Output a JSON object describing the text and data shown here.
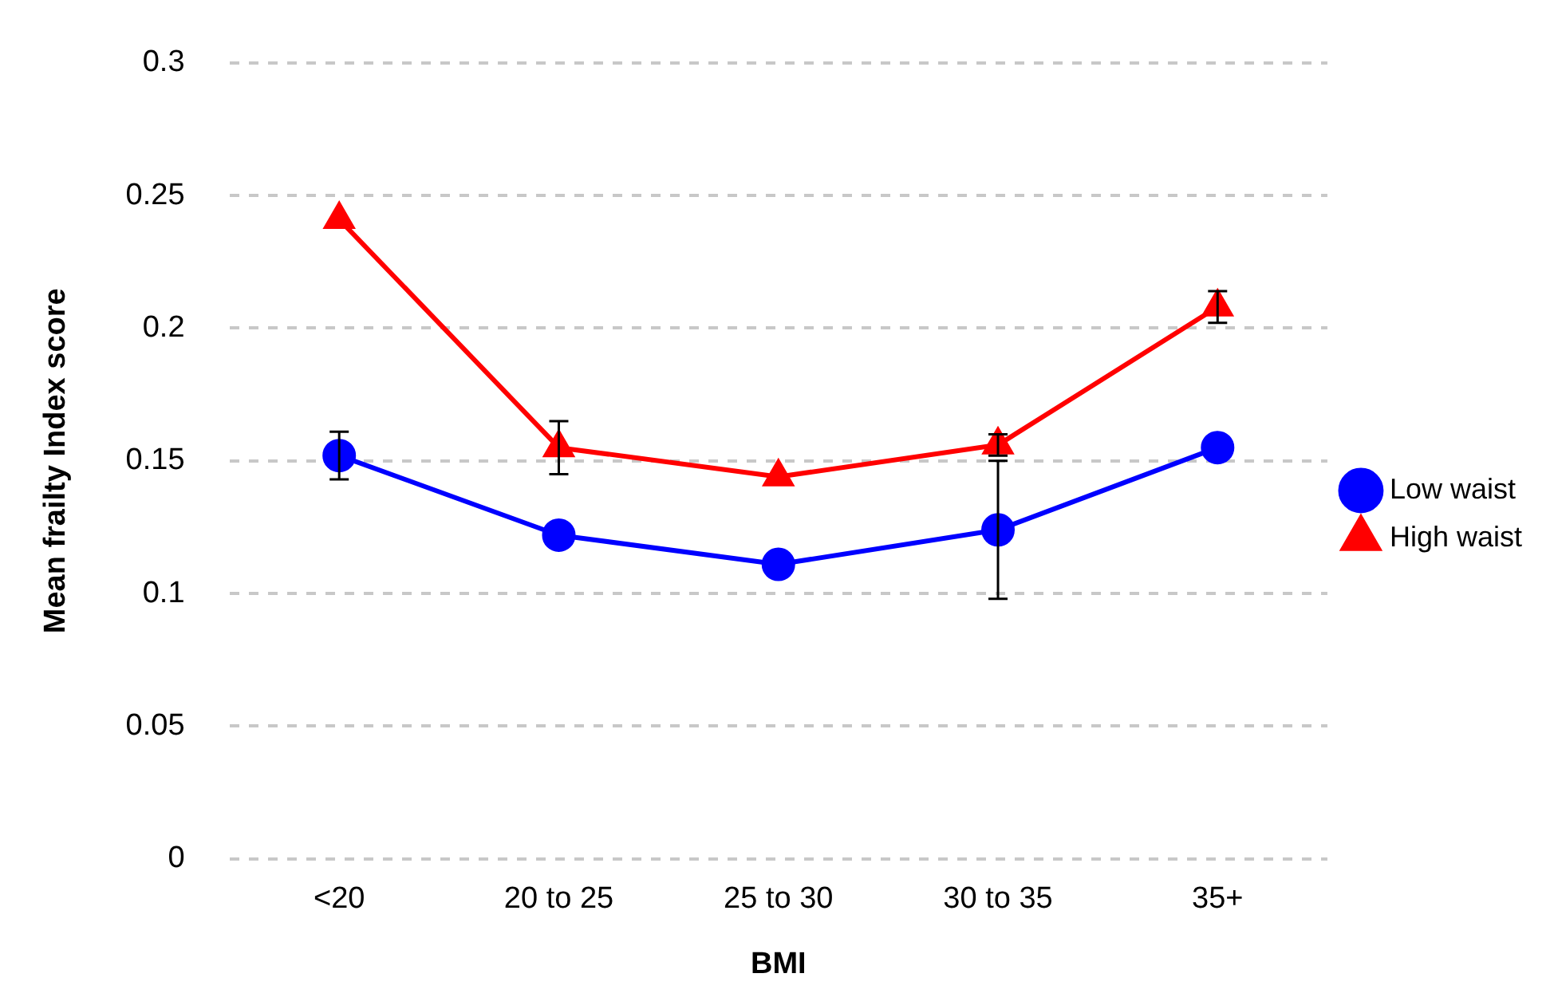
{
  "chart_data": {
    "type": "line",
    "xlabel": "BMI",
    "ylabel": "Mean frailty Index score",
    "categories": [
      "<20",
      "20 to 25",
      "25 to 30",
      "30 to 35",
      "35+"
    ],
    "series": [
      {
        "name": "Low waist",
        "color": "#0000ff",
        "marker": "circle",
        "values": [
          0.152,
          0.122,
          0.111,
          0.124,
          0.155
        ],
        "errors": [
          0.009,
          null,
          null,
          0.026,
          null
        ]
      },
      {
        "name": "High waist",
        "color": "#ff0000",
        "marker": "triangle",
        "values": [
          0.241,
          0.155,
          0.144,
          0.156,
          0.208
        ],
        "errors": [
          null,
          0.01,
          null,
          0.004,
          0.006
        ]
      }
    ],
    "ylim": [
      0,
      0.3
    ],
    "yticks": [
      0,
      0.05,
      0.1,
      0.15,
      0.2,
      0.25,
      0.3
    ],
    "grid": "y",
    "legend": "right"
  }
}
